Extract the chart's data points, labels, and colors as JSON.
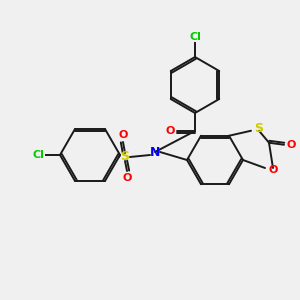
{
  "background_color": "#f0f0f0",
  "bond_color": "#1a1a1a",
  "atom_colors": {
    "N": "#0000ff",
    "O": "#ff0000",
    "S_sulfonyl": "#cccc00",
    "S_thio": "#cccc00",
    "Cl": "#00cc00",
    "C": "#1a1a1a"
  },
  "title": "",
  "figsize": [
    3.0,
    3.0
  ],
  "dpi": 100
}
